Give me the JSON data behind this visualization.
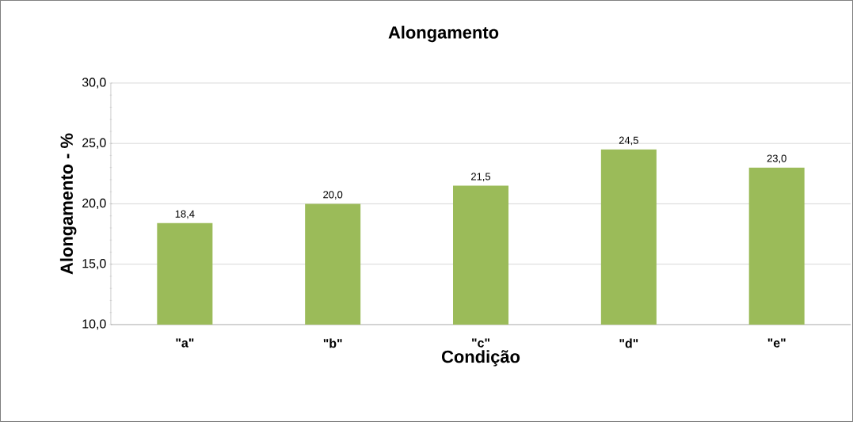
{
  "chart_data": {
    "type": "bar",
    "title": "Alongamento",
    "xlabel": "Condição",
    "ylabel": "Alongamento - %",
    "categories": [
      "\"a\"",
      "\"b\"",
      "\"c\"",
      "\"d\"",
      "\"e\""
    ],
    "values": [
      18.4,
      20.0,
      21.5,
      24.5,
      23.0
    ],
    "value_labels": [
      "18,4",
      "20,0",
      "21,5",
      "24,5",
      "23,0"
    ],
    "color": "#9bbb59",
    "ylim": [
      10,
      30
    ],
    "yticks": [
      {
        "value": 10,
        "label": "10,0"
      },
      {
        "value": 15,
        "label": "15,0"
      },
      {
        "value": 20,
        "label": "20,0"
      },
      {
        "value": 25,
        "label": "25,0"
      },
      {
        "value": 30,
        "label": "30,0"
      }
    ],
    "grid": "y"
  }
}
